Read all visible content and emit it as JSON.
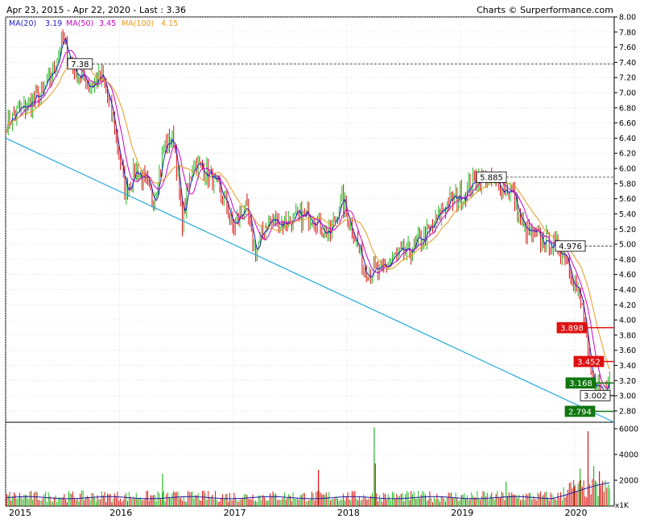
{
  "header": {
    "left": "Apr 23, 2015 - Apr 22, 2020 - Last : 3.36",
    "right": "Charts © Surperformance.com"
  },
  "legend": {
    "ma20": {
      "label": "MA(20)",
      "value": "3.19",
      "color": "#2020c0"
    },
    "ma50": {
      "label": "MA(50)",
      "value": "3.45",
      "color": "#cc00cc"
    },
    "ma100": {
      "label": "MA(100)",
      "value": "4.15",
      "color": "#e89a1e"
    }
  },
  "colors": {
    "up": "#22bb22",
    "down": "#dd1111",
    "trendline": "#22aadd",
    "volume_ma": "#1a1aa0",
    "resistance_label": "#ffffff",
    "support_label_bg": "#117711",
    "red_label_bg": "#dd1111"
  },
  "volume_axis_label": "x1K",
  "chart_data": [
    {
      "type": "candlestick",
      "scale": "linear",
      "x": [
        "2015",
        "2016",
        "2017",
        "2018",
        "2019",
        "2020"
      ],
      "ylim": [
        2.65,
        8.0
      ],
      "yticks": [
        "8.00",
        "7.80",
        "7.60",
        "7.40",
        "7.20",
        "7.00",
        "6.80",
        "6.60",
        "6.40",
        "6.20",
        "6.00",
        "5.80",
        "5.60",
        "5.40",
        "5.20",
        "5.00",
        "4.80",
        "4.60",
        "4.40",
        "4.20",
        "4.00",
        "3.80",
        "3.60",
        "3.40",
        "3.20",
        "3.00",
        "2.80"
      ],
      "grid": true,
      "series": [
        {
          "name": "MA(20)",
          "last": 3.19
        },
        {
          "name": "MA(50)",
          "last": 3.45
        },
        {
          "name": "MA(100)",
          "last": 4.15
        }
      ],
      "price_path": [
        [
          2015.3,
          6.9
        ],
        [
          2015.42,
          7.3
        ],
        [
          2015.5,
          7.7
        ],
        [
          2015.6,
          7.3
        ],
        [
          2015.75,
          7.1
        ],
        [
          2015.85,
          7.2
        ],
        [
          2015.95,
          6.6
        ],
        [
          2016.05,
          5.7
        ],
        [
          2016.15,
          6.0
        ],
        [
          2016.3,
          5.6
        ],
        [
          2016.4,
          6.3
        ],
        [
          2016.48,
          6.4
        ],
        [
          2016.55,
          5.3
        ],
        [
          2016.65,
          6.1
        ],
        [
          2016.8,
          5.9
        ],
        [
          2016.95,
          5.5
        ],
        [
          2017.0,
          5.2
        ],
        [
          2017.1,
          5.5
        ],
        [
          2017.2,
          4.9
        ],
        [
          2017.3,
          5.3
        ],
        [
          2017.5,
          5.3
        ],
        [
          2017.7,
          5.4
        ],
        [
          2017.85,
          5.1
        ],
        [
          2017.95,
          5.6
        ],
        [
          2018.05,
          5.2
        ],
        [
          2018.15,
          4.7
        ],
        [
          2018.28,
          4.6
        ],
        [
          2018.4,
          4.8
        ],
        [
          2018.55,
          4.9
        ],
        [
          2018.75,
          5.2
        ],
        [
          2018.85,
          5.5
        ],
        [
          2018.95,
          5.6
        ],
        [
          2019.05,
          5.7
        ],
        [
          2019.15,
          5.9
        ],
        [
          2019.3,
          5.8
        ],
        [
          2019.45,
          5.7
        ],
        [
          2019.55,
          5.2
        ],
        [
          2019.65,
          5.1
        ],
        [
          2019.8,
          5.0
        ],
        [
          2019.92,
          4.9
        ],
        [
          2020.0,
          4.5
        ],
        [
          2020.08,
          4.1
        ],
        [
          2020.12,
          3.5
        ],
        [
          2020.16,
          3.1
        ],
        [
          2020.2,
          3.2
        ],
        [
          2020.25,
          3.0
        ],
        [
          2020.31,
          3.36
        ]
      ],
      "trendline": {
        "from": [
          2015.0,
          6.4
        ],
        "to": [
          2020.35,
          2.65
        ]
      },
      "levels": [
        {
          "label": "7.38",
          "value": 7.38,
          "kind": "resistance-dashed",
          "from": 2015.55
        },
        {
          "label": "5.885",
          "value": 5.885,
          "kind": "resistance-dashed",
          "from": 2019.1
        },
        {
          "label": "4.976",
          "value": 4.976,
          "kind": "resistance-dashed",
          "from": 2019.85
        },
        {
          "label": "3.898",
          "value": 3.898,
          "kind": "red"
        },
        {
          "label": "3.452",
          "value": 3.452,
          "kind": "red"
        },
        {
          "label": "3.168",
          "value": 3.168,
          "kind": "green"
        },
        {
          "label": "3.002",
          "value": 3.002,
          "kind": "white"
        },
        {
          "label": "2.794",
          "value": 2.794,
          "kind": "green"
        }
      ]
    },
    {
      "type": "bar",
      "title": "",
      "ylim": [
        0,
        6000
      ],
      "yticks": [
        "6000",
        "4000",
        "2000"
      ],
      "unit": "x1K",
      "spikes": [
        [
          2016.38,
          2500
        ],
        [
          2017.75,
          2800
        ],
        [
          2018.24,
          6100
        ],
        [
          2018.25,
          3300
        ],
        [
          2019.4,
          1900
        ],
        [
          2020.0,
          1500
        ],
        [
          2020.05,
          2900
        ],
        [
          2020.12,
          5800
        ],
        [
          2020.17,
          3100
        ],
        [
          2020.22,
          2700
        ]
      ]
    }
  ]
}
